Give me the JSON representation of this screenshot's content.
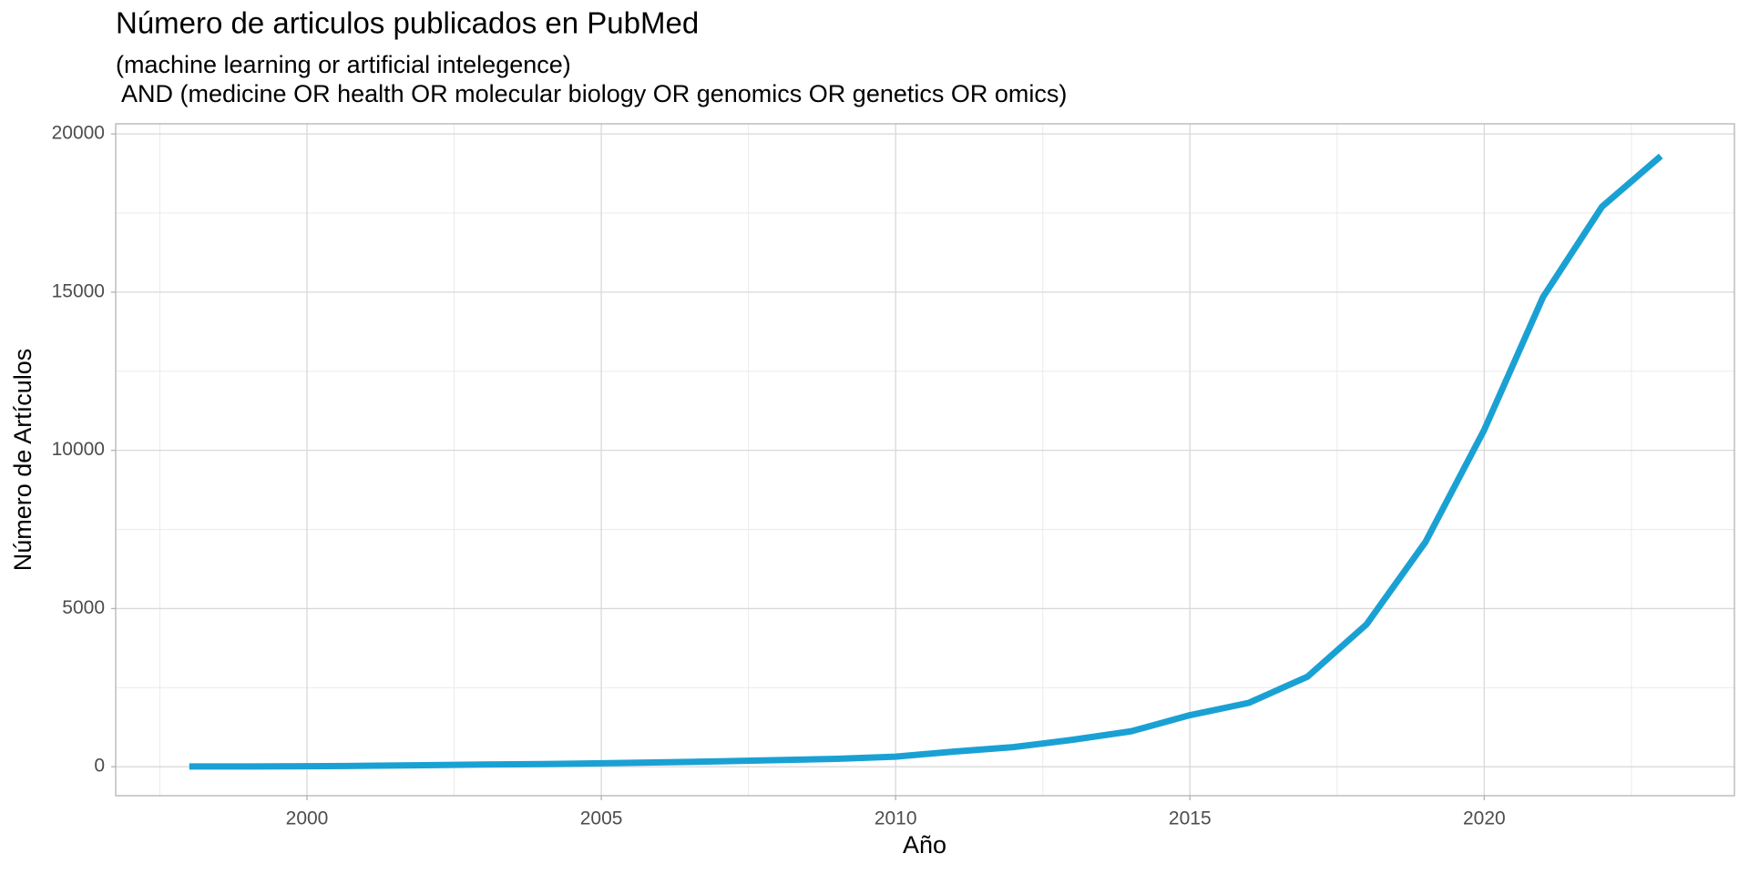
{
  "chart_data": {
    "type": "line",
    "title": "Número de articulos publicados en PubMed",
    "subtitle": [
      "(machine learning or artificial intelegence)",
      " AND (medicine OR health OR molecular biology OR genomics OR genetics OR omics)"
    ],
    "x_label": "Año",
    "y_label": "Número de Artículos",
    "x": [
      1998,
      1999,
      2000,
      2001,
      2002,
      2003,
      2004,
      2005,
      2006,
      2007,
      2008,
      2009,
      2010,
      2011,
      2012,
      2013,
      2014,
      2015,
      2016,
      2017,
      2018,
      2019,
      2020,
      2021,
      2022,
      2023
    ],
    "series": [
      {
        "name": "Artículos",
        "color": "#1aa1d4",
        "values": [
          10,
          10,
          15,
          30,
          50,
          70,
          85,
          110,
          140,
          170,
          210,
          250,
          320,
          480,
          620,
          850,
          1120,
          1630,
          2020,
          2850,
          4500,
          7100,
          10650,
          14850,
          17700,
          19300
        ]
      }
    ],
    "xlim": [
      1996.75,
      2024.25
    ],
    "xticks": [
      2000,
      2005,
      2010,
      2015,
      2020
    ],
    "ylim": [
      -915,
      20320
    ],
    "yticks": [
      0,
      5000,
      10000,
      15000,
      20000
    ],
    "grid": true
  }
}
